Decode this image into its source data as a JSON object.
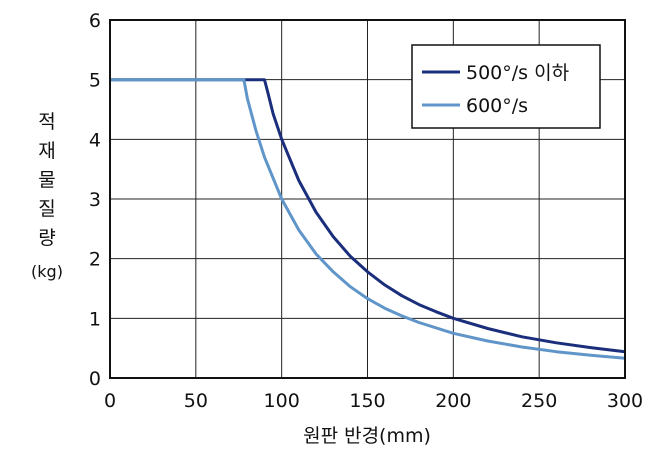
{
  "chart_data": {
    "type": "line",
    "title": "",
    "xlabel": "원판 반경(mm)",
    "ylabel": [
      "적",
      "재",
      "물",
      "질",
      "량",
      "(kg)"
    ],
    "xlim": [
      0,
      300
    ],
    "ylim": [
      0,
      6
    ],
    "x_ticks": [
      "0",
      "50",
      "100",
      "150",
      "200",
      "250",
      "300"
    ],
    "y_ticks": [
      "0",
      "1",
      "2",
      "3",
      "4",
      "5",
      "6"
    ],
    "grid": true,
    "legend_position": "top-right",
    "series": [
      {
        "name": "500°/s 이하",
        "color": "#1a2e7c",
        "x": [
          0,
          90,
          92,
          95,
          100,
          110,
          120,
          130,
          140,
          150,
          160,
          170,
          180,
          190,
          200,
          220,
          240,
          260,
          280,
          300
        ],
        "y": [
          5,
          5,
          4.78,
          4.43,
          4.0,
          3.31,
          2.78,
          2.37,
          2.04,
          1.78,
          1.56,
          1.38,
          1.23,
          1.11,
          1.0,
          0.83,
          0.69,
          0.59,
          0.51,
          0.44
        ]
      },
      {
        "name": "600°/s",
        "color": "#5f95c9",
        "x": [
          0,
          78,
          80,
          85,
          90,
          100,
          110,
          120,
          130,
          140,
          150,
          160,
          170,
          180,
          200,
          220,
          240,
          260,
          280,
          300
        ],
        "y": [
          5,
          5,
          4.69,
          4.15,
          3.7,
          3.0,
          2.48,
          2.08,
          1.78,
          1.53,
          1.33,
          1.17,
          1.04,
          0.93,
          0.75,
          0.62,
          0.52,
          0.44,
          0.38,
          0.33
        ]
      }
    ]
  }
}
